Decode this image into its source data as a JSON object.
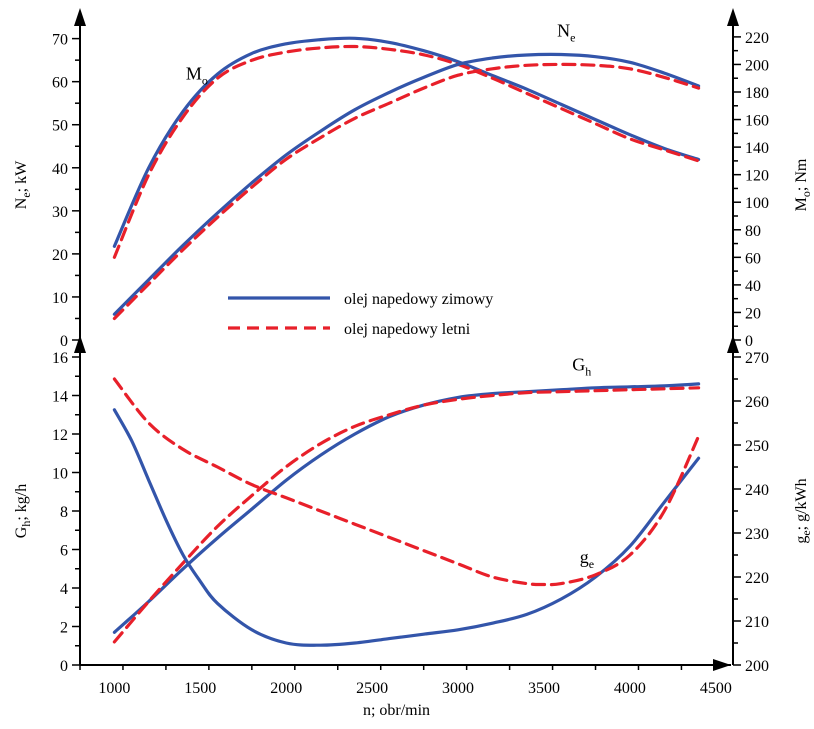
{
  "chart_data": {
    "type": "line",
    "x_axis": {
      "title": "n; obr/min",
      "range": [
        800,
        4600
      ],
      "ticks": [
        1000,
        1500,
        2000,
        2500,
        3000,
        3500,
        4000,
        4500
      ]
    },
    "legend": {
      "placement": "middle-center",
      "entries": [
        {
          "label": "olej napedowy zimowy",
          "color": "#3355aa",
          "dash": "solid"
        },
        {
          "label": "olej napedowy letni",
          "color": "#e8202a",
          "dash": "dashed"
        }
      ]
    },
    "panels": [
      {
        "name": "top",
        "left_axis": {
          "title_main": "N",
          "title_sub": "e",
          "title_rest": "; kW",
          "range": [
            0,
            72
          ],
          "ticks": [
            0,
            10,
            20,
            30,
            40,
            50,
            60,
            70
          ]
        },
        "right_axis": {
          "title_main": "M",
          "title_sub": "o",
          "title_rest": "; Nm",
          "range": [
            0,
            225
          ],
          "ticks": [
            0,
            20,
            40,
            60,
            80,
            100,
            120,
            140,
            160,
            180,
            200,
            220
          ]
        },
        "labels": [
          {
            "main": "M",
            "sub": "o",
            "x": 1480,
            "y": 60.5,
            "axis": "left"
          },
          {
            "main": "N",
            "sub": "e",
            "x": 3630,
            "y": 70.5,
            "axis": "left"
          }
        ],
        "series": [
          {
            "name": "M_o zimowy",
            "axis": "right",
            "style": "solid",
            "x": [
              1000,
              1200,
              1400,
              1600,
              1800,
              2000,
              2200,
              2400,
              2600,
              2800,
              3000,
              3200,
              3400,
              3600,
              3800,
              4000,
              4200,
              4400
            ],
            "y": [
              68,
              125,
              166,
              193,
              208,
              215,
              218,
              219,
              216,
              210,
              202,
              192,
              182,
              171,
              160,
              149,
              139,
              131
            ]
          },
          {
            "name": "M_o letni",
            "axis": "right",
            "style": "dashed",
            "x": [
              1000,
              1200,
              1400,
              1600,
              1800,
              2000,
              2200,
              2400,
              2600,
              2800,
              3000,
              3200,
              3400,
              3600,
              3800,
              4000,
              4200,
              4400
            ],
            "y": [
              60,
              120,
              162,
              190,
              203,
              209,
              212,
              213,
              211,
              207,
              200,
              190,
              179,
              168,
              157,
              146,
              138,
              130
            ]
          },
          {
            "name": "N_e zimowy",
            "axis": "left",
            "style": "solid",
            "x": [
              1000,
              1200,
              1400,
              1600,
              1800,
              2000,
              2200,
              2400,
              2600,
              2800,
              3000,
              3200,
              3400,
              3600,
              3800,
              4000,
              4200,
              4400
            ],
            "y": [
              6,
              14,
              22,
              29.5,
              36.5,
              43,
              48.5,
              53.5,
              57.5,
              61,
              64,
              65.5,
              66.2,
              66.3,
              65.8,
              64.5,
              62,
              59
            ]
          },
          {
            "name": "N_e letni",
            "axis": "left",
            "style": "dashed",
            "x": [
              1000,
              1200,
              1400,
              1600,
              1800,
              2000,
              2200,
              2400,
              2600,
              2800,
              3000,
              3200,
              3400,
              3600,
              3800,
              4000,
              4200,
              4400
            ],
            "y": [
              5,
              13,
              21,
              28.5,
              35.5,
              42,
              47,
              51.5,
              55,
              58.5,
              61.5,
              63,
              63.8,
              64,
              63.8,
              63,
              61,
              58.5
            ]
          }
        ]
      },
      {
        "name": "bottom",
        "left_axis": {
          "title_main": "G",
          "title_sub": "h",
          "title_rest": "; kg/h",
          "range": [
            0,
            16
          ],
          "ticks": [
            0,
            2,
            4,
            6,
            8,
            10,
            12,
            14,
            16
          ]
        },
        "right_axis": {
          "title_main": "g",
          "title_sub": "e",
          "title_rest": "; g/kWh",
          "range": [
            200,
            270
          ],
          "ticks": [
            200,
            210,
            220,
            230,
            240,
            250,
            260,
            270
          ]
        },
        "labels": [
          {
            "main": "G",
            "sub": "h",
            "x": 3720,
            "y": 15.3,
            "axis": "left"
          },
          {
            "main": "g",
            "sub": "e",
            "x": 3750,
            "y": 5.3,
            "axis": "left"
          }
        ],
        "series": [
          {
            "name": "G_h zimowy",
            "axis": "left",
            "style": "solid",
            "x": [
              1000,
              1200,
              1400,
              1600,
              1800,
              2000,
              2200,
              2400,
              2600,
              2800,
              3000,
              3200,
              3400,
              3600,
              3800,
              4000,
              4200,
              4400
            ],
            "y": [
              1.7,
              3.3,
              5.0,
              6.6,
              8.1,
              9.6,
              10.9,
              12.0,
              12.9,
              13.5,
              13.9,
              14.1,
              14.2,
              14.3,
              14.4,
              14.45,
              14.5,
              14.6
            ]
          },
          {
            "name": "G_h letni",
            "axis": "left",
            "style": "dashed",
            "x": [
              1000,
              1200,
              1400,
              1600,
              1800,
              2000,
              2200,
              2400,
              2600,
              2800,
              3000,
              3200,
              3400,
              3600,
              3800,
              4000,
              4200,
              4400
            ],
            "y": [
              1.2,
              3.3,
              5.3,
              7.2,
              8.8,
              10.3,
              11.5,
              12.4,
              13.0,
              13.5,
              13.8,
              14.0,
              14.15,
              14.2,
              14.25,
              14.3,
              14.35,
              14.4
            ]
          },
          {
            "name": "g_e zimowy",
            "axis": "right",
            "style": "solid",
            "x": [
              1000,
              1100,
              1200,
              1300,
              1400,
              1500,
              1600,
              1800,
              2000,
              2200,
              2400,
              2600,
              2800,
              3000,
              3200,
              3400,
              3600,
              3800,
              4000,
              4200,
              4400
            ],
            "y": [
              258,
              251,
              242,
              233,
              225,
              219,
              214,
              208,
              205,
              204.5,
              205,
              206,
              207,
              208,
              209.5,
              211.5,
              215,
              220,
              227,
              237,
              247
            ]
          },
          {
            "name": "g_e letni",
            "axis": "right",
            "style": "dashed",
            "x": [
              1000,
              1200,
              1400,
              1600,
              1800,
              2000,
              2200,
              2400,
              2600,
              2800,
              3000,
              3200,
              3400,
              3500,
              3600,
              3800,
              4000,
              4200,
              4400
            ],
            "y": [
              265,
              255,
              249,
              245,
              241,
              238,
              235,
              232,
              229,
              226,
              223,
              220,
              218.5,
              218.3,
              218.5,
              220.5,
              225,
              235,
              252
            ]
          }
        ]
      }
    ]
  }
}
